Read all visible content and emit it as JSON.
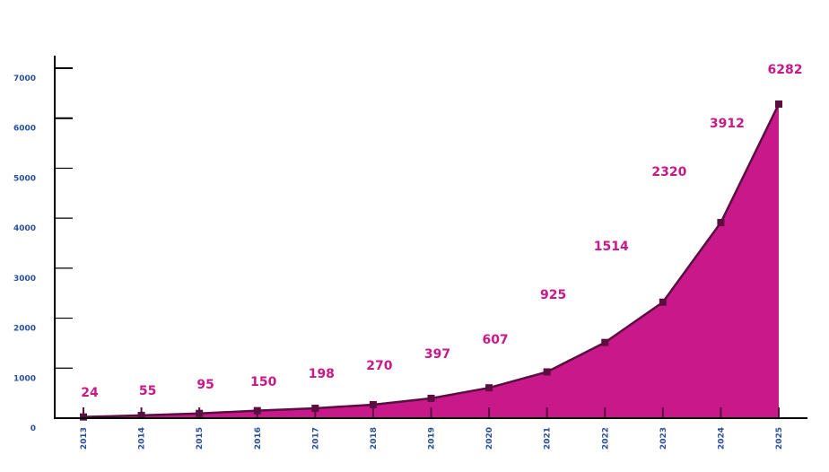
{
  "chart_data": {
    "type": "area",
    "title": "",
    "xlabel": "",
    "ylabel": "",
    "categories": [
      "2013",
      "2014",
      "2015",
      "2016",
      "2017",
      "2018",
      "2019",
      "2020",
      "2021",
      "2022",
      "2023",
      "2024",
      "2025"
    ],
    "series": [
      {
        "name": "",
        "values": [
          24,
          55,
          95,
          150,
          198,
          270,
          397,
          607,
          925,
          1514,
          2320,
          3912,
          6282
        ]
      }
    ],
    "yticks": [
      0,
      1000,
      2000,
      3000,
      4000,
      5000,
      6000,
      7000
    ],
    "ylim": [
      0,
      7000
    ],
    "grid": false,
    "legend": null,
    "data_labels": true,
    "colors": {
      "fill": "#c8188a",
      "line": "#5a0f40",
      "marker": "#5a0f40",
      "data_label": "#c8188a",
      "tick_label": "#2a4f9c",
      "axis": "#000000"
    }
  }
}
